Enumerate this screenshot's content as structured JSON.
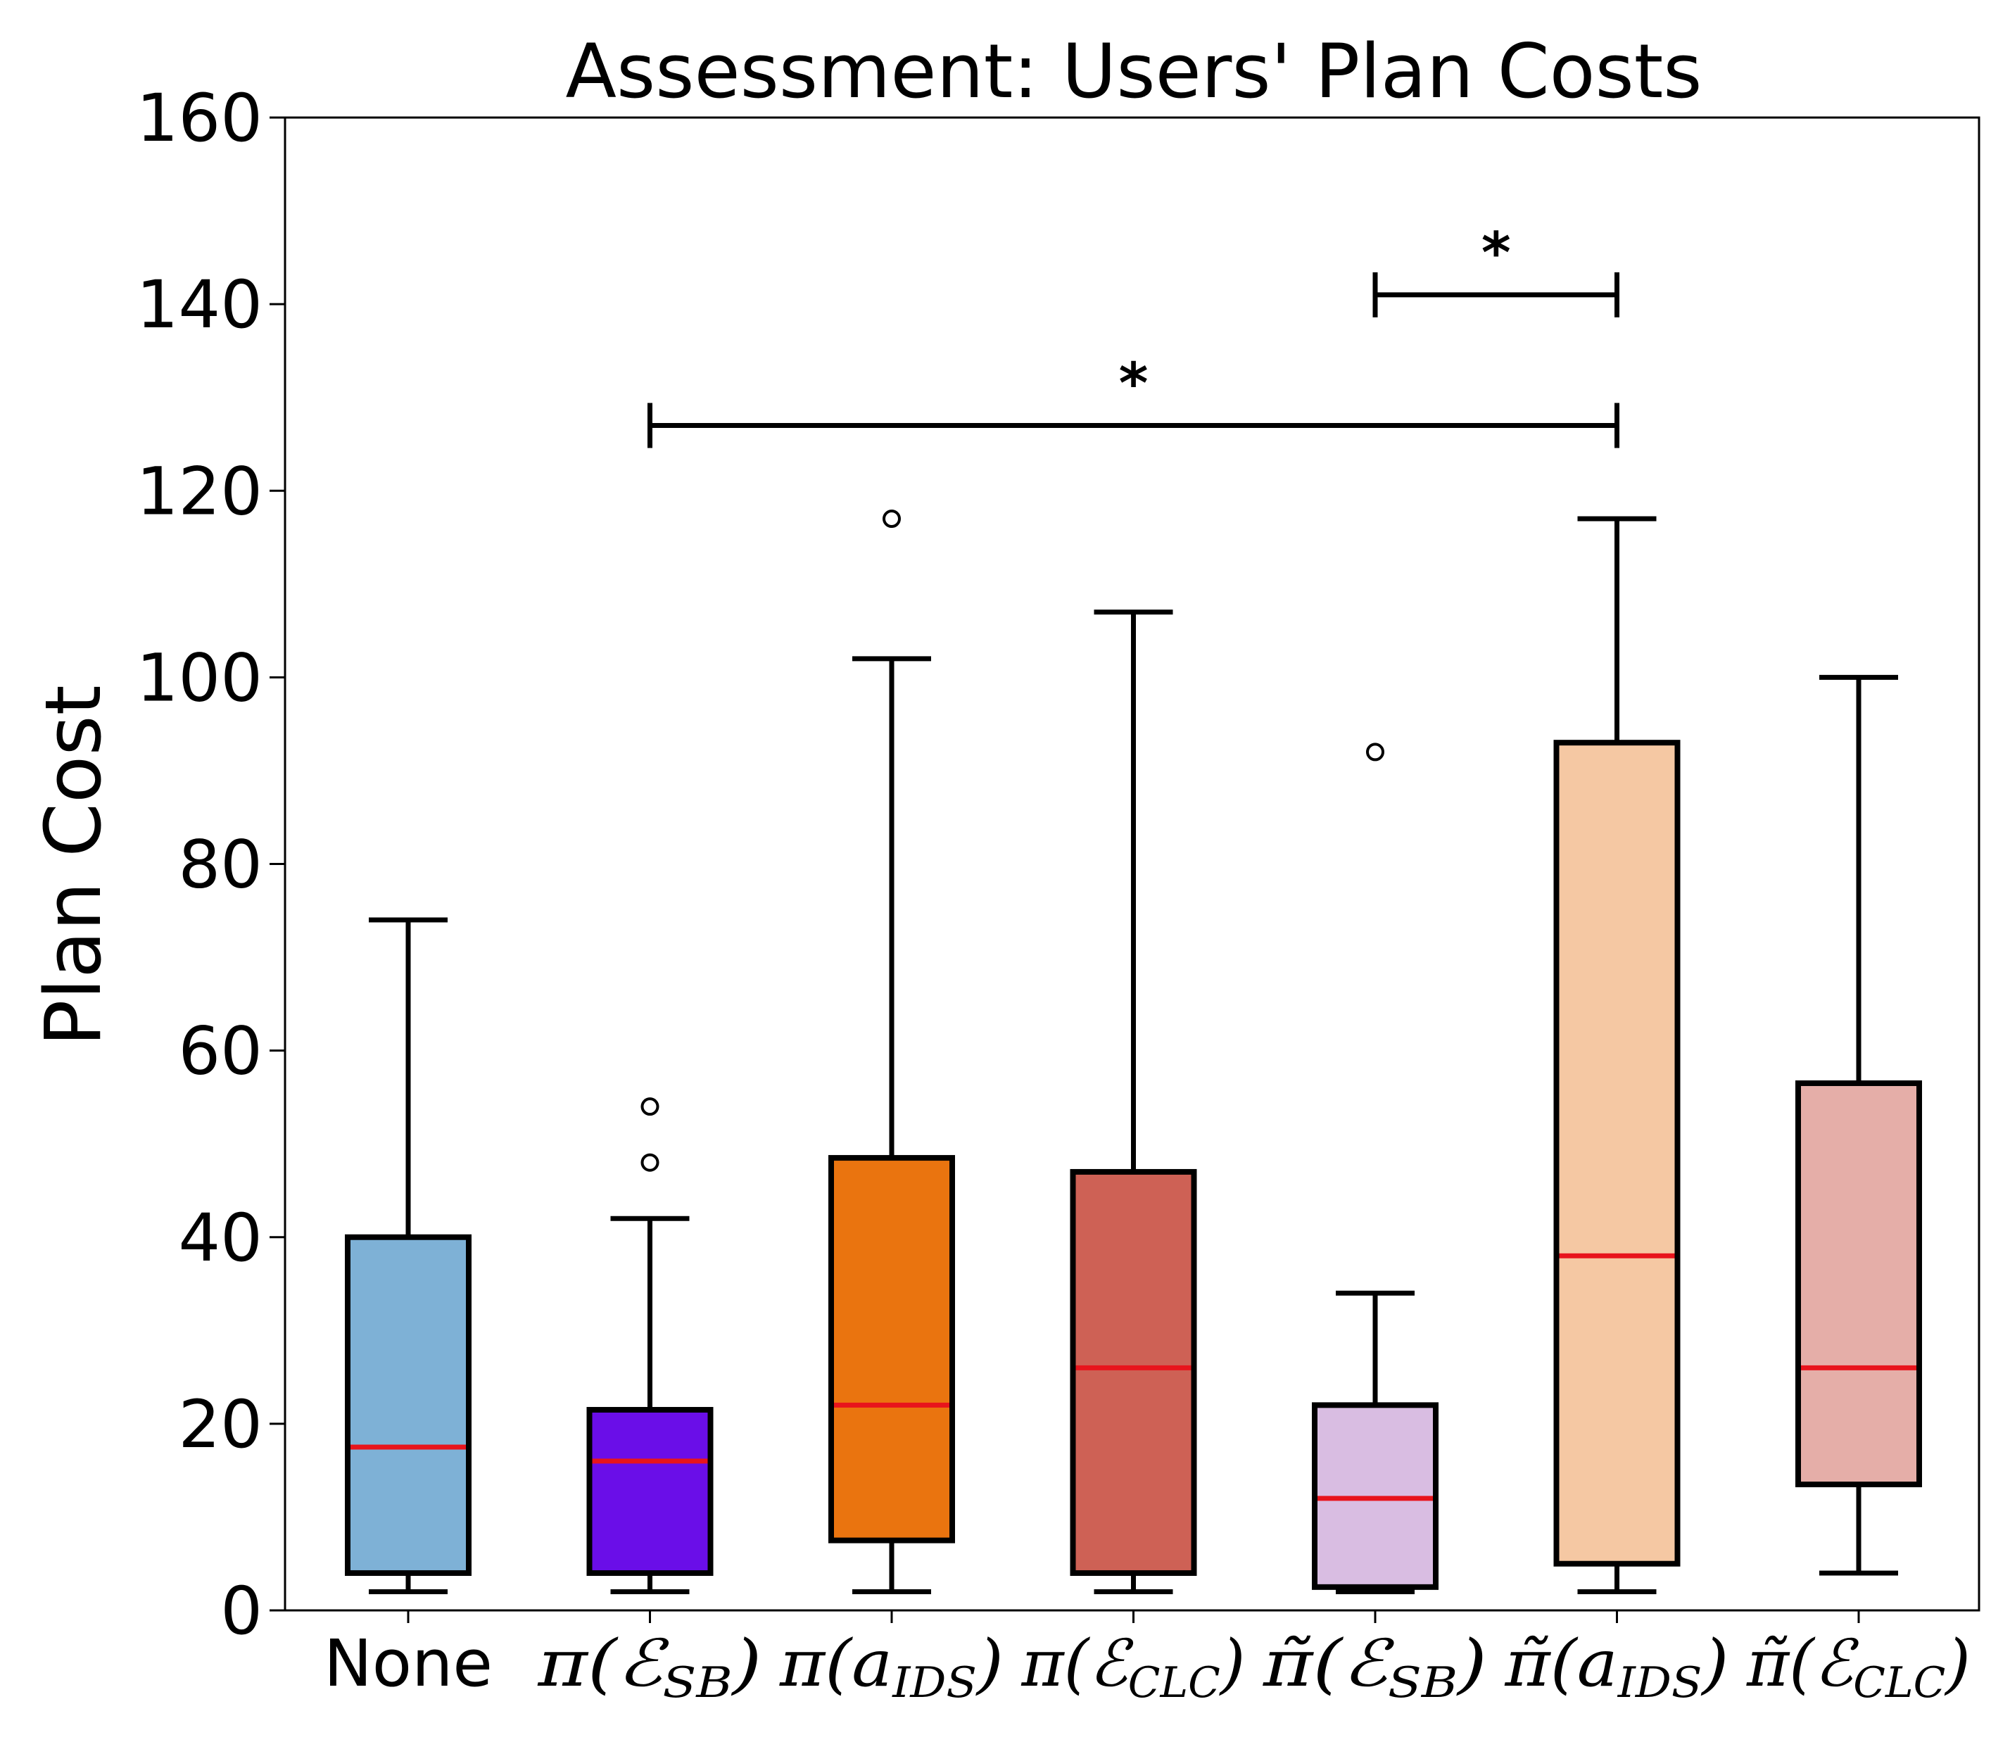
{
  "chart_data": {
    "type": "box",
    "title": "Assessment: Users' Plan Costs",
    "xlabel": "",
    "ylabel": "Plan Cost",
    "ylim": [
      0,
      160
    ],
    "yticks": [
      "0",
      "20",
      "40",
      "60",
      "80",
      "100",
      "120",
      "140",
      "160"
    ],
    "grid": false,
    "categories": [
      {
        "text": "None"
      },
      {
        "base": "π(",
        "sym": "ℰ",
        "sub": "SB",
        "close": ")"
      },
      {
        "base": "π(",
        "sym": "a",
        "sub": "IDS",
        "close": ")"
      },
      {
        "base": "π(",
        "sym": "ℰ",
        "sub": "CLC",
        "close": ")"
      },
      {
        "base": "π̃(",
        "sym": "ℰ",
        "sub": "SB",
        "close": ")"
      },
      {
        "base": "π̃(",
        "sym": "a",
        "sub": "IDS",
        "close": ")"
      },
      {
        "base": "π̃(",
        "sym": "ℰ",
        "sub": "CLC",
        "close": ")"
      }
    ],
    "boxes": [
      {
        "whisker_low": 2,
        "q1": 4,
        "median": 17.5,
        "q3": 40,
        "whisker_high": 74,
        "outliers": [],
        "color": "#7eb1d6"
      },
      {
        "whisker_low": 2,
        "q1": 4,
        "median": 16,
        "q3": 21.5,
        "whisker_high": 42,
        "outliers": [
          48,
          54
        ],
        "color": "#6a0ee8"
      },
      {
        "whisker_low": 2,
        "q1": 7.5,
        "median": 22,
        "q3": 48.5,
        "whisker_high": 102,
        "outliers": [
          117
        ],
        "color": "#ea740f"
      },
      {
        "whisker_low": 2,
        "q1": 4,
        "median": 26,
        "q3": 47,
        "whisker_high": 107,
        "outliers": [],
        "color": "#ce6155"
      },
      {
        "whisker_low": 2,
        "q1": 2.5,
        "median": 12,
        "q3": 22,
        "whisker_high": 34,
        "outliers": [
          92
        ],
        "color": "#d9bde2"
      },
      {
        "whisker_low": 2,
        "q1": 5,
        "median": 38,
        "q3": 93,
        "whisker_high": 117,
        "outliers": [],
        "color": "#f5c8a3"
      },
      {
        "whisker_low": 4,
        "q1": 13.5,
        "median": 26,
        "q3": 56.5,
        "whisker_high": 100,
        "outliers": [],
        "color": "#e5aea8"
      }
    ],
    "median_color": "#e8141c",
    "significance": [
      {
        "from": 4,
        "to": 5,
        "y": 141,
        "label": "*"
      },
      {
        "from": 1,
        "to": 5,
        "y": 127,
        "label": "*"
      }
    ]
  }
}
